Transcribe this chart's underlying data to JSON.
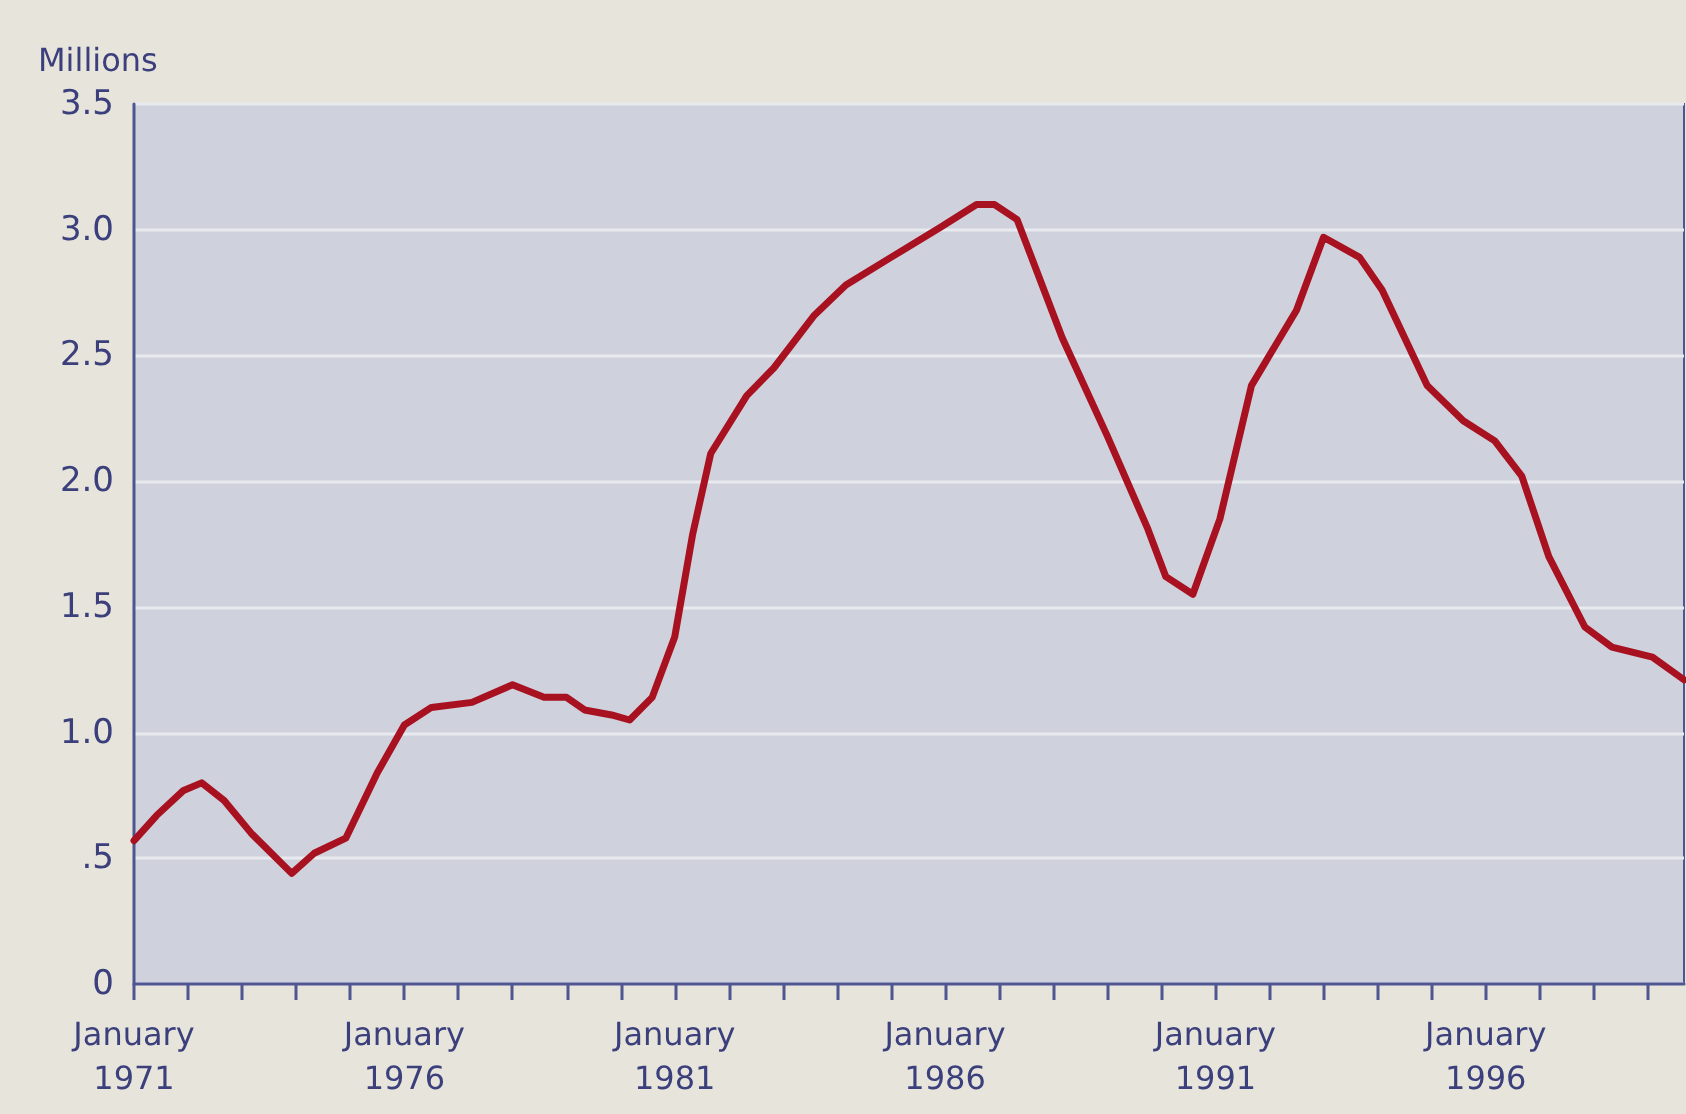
{
  "chart_data": {
    "type": "line",
    "ylabel": "Millions",
    "x": [
      "1971-01",
      "1971-06",
      "1971-12",
      "1972-04",
      "1972-09",
      "1973-03",
      "1973-12",
      "1974-05",
      "1974-12",
      "1975-07",
      "1976-01",
      "1976-07",
      "1977-04",
      "1978-01",
      "1978-08",
      "1979-01",
      "1979-05",
      "1979-11",
      "1980-03",
      "1980-08",
      "1981-01",
      "1981-05",
      "1981-09",
      "1982-05",
      "1982-11",
      "1983-08",
      "1984-03",
      "1985-01",
      "1985-12",
      "1986-08",
      "1986-12",
      "1987-05",
      "1988-03",
      "1989-01",
      "1989-10",
      "1990-02",
      "1990-08",
      "1991-02",
      "1991-09",
      "1992-07",
      "1993-01",
      "1993-09",
      "1994-02",
      "1994-12",
      "1995-08",
      "1996-03",
      "1996-09",
      "1997-03",
      "1997-11",
      "1998-05",
      "1999-02",
      "1999-09"
    ],
    "series": [
      {
        "color": "#a8111f",
        "values": [
          0.57,
          0.67,
          0.77,
          0.8,
          0.73,
          0.6,
          0.44,
          0.52,
          0.58,
          0.84,
          1.03,
          1.1,
          1.12,
          1.19,
          1.14,
          1.14,
          1.09,
          1.07,
          1.05,
          1.14,
          1.38,
          1.79,
          2.11,
          2.34,
          2.45,
          2.66,
          2.78,
          2.89,
          3.01,
          3.1,
          3.1,
          3.04,
          2.57,
          2.18,
          1.81,
          1.62,
          1.55,
          1.85,
          2.38,
          2.68,
          2.97,
          2.89,
          2.76,
          2.38,
          2.24,
          2.16,
          2.02,
          1.7,
          1.42,
          1.34,
          1.3,
          1.21
        ]
      }
    ],
    "xlim": [
      "1971-01",
      "1999-09"
    ],
    "xticks": [
      {
        "value": "1971-01",
        "label": "January\n1971"
      },
      {
        "value": "1972-01",
        "label": null
      },
      {
        "value": "1973-01",
        "label": null
      },
      {
        "value": "1974-01",
        "label": null
      },
      {
        "value": "1975-01",
        "label": null
      },
      {
        "value": "1976-01",
        "label": "January\n1976"
      },
      {
        "value": "1977-01",
        "label": null
      },
      {
        "value": "1978-01",
        "label": null
      },
      {
        "value": "1979-01",
        "label": null
      },
      {
        "value": "1980-01",
        "label": null
      },
      {
        "value": "1981-01",
        "label": "January\n1981"
      },
      {
        "value": "1982-01",
        "label": null
      },
      {
        "value": "1983-01",
        "label": null
      },
      {
        "value": "1984-01",
        "label": null
      },
      {
        "value": "1985-01",
        "label": null
      },
      {
        "value": "1986-01",
        "label": "January\n1986"
      },
      {
        "value": "1987-01",
        "label": null
      },
      {
        "value": "1988-01",
        "label": null
      },
      {
        "value": "1989-01",
        "label": null
      },
      {
        "value": "1990-01",
        "label": null
      },
      {
        "value": "1991-01",
        "label": "January\n1991"
      },
      {
        "value": "1992-01",
        "label": null
      },
      {
        "value": "1993-01",
        "label": null
      },
      {
        "value": "1994-01",
        "label": null
      },
      {
        "value": "1995-01",
        "label": null
      },
      {
        "value": "1996-01",
        "label": "January\n1996"
      },
      {
        "value": "1997-01",
        "label": null
      },
      {
        "value": "1998-01",
        "label": null
      },
      {
        "value": "1999-01",
        "label": null
      }
    ],
    "ylim": [
      0,
      3.5
    ],
    "yticks": [
      0,
      {
        "value": 0.5,
        "label": ".5"
      },
      {
        "value": 1,
        "label": "1.0"
      },
      {
        "value": 1.5,
        "label": "1.5"
      },
      {
        "value": 2,
        "label": "2.0"
      },
      {
        "value": 2.5,
        "label": "2.5"
      },
      {
        "value": 3,
        "label": "3.0"
      },
      3.5
    ],
    "grid": "y",
    "marker": "none",
    "line_style": "solid"
  }
}
